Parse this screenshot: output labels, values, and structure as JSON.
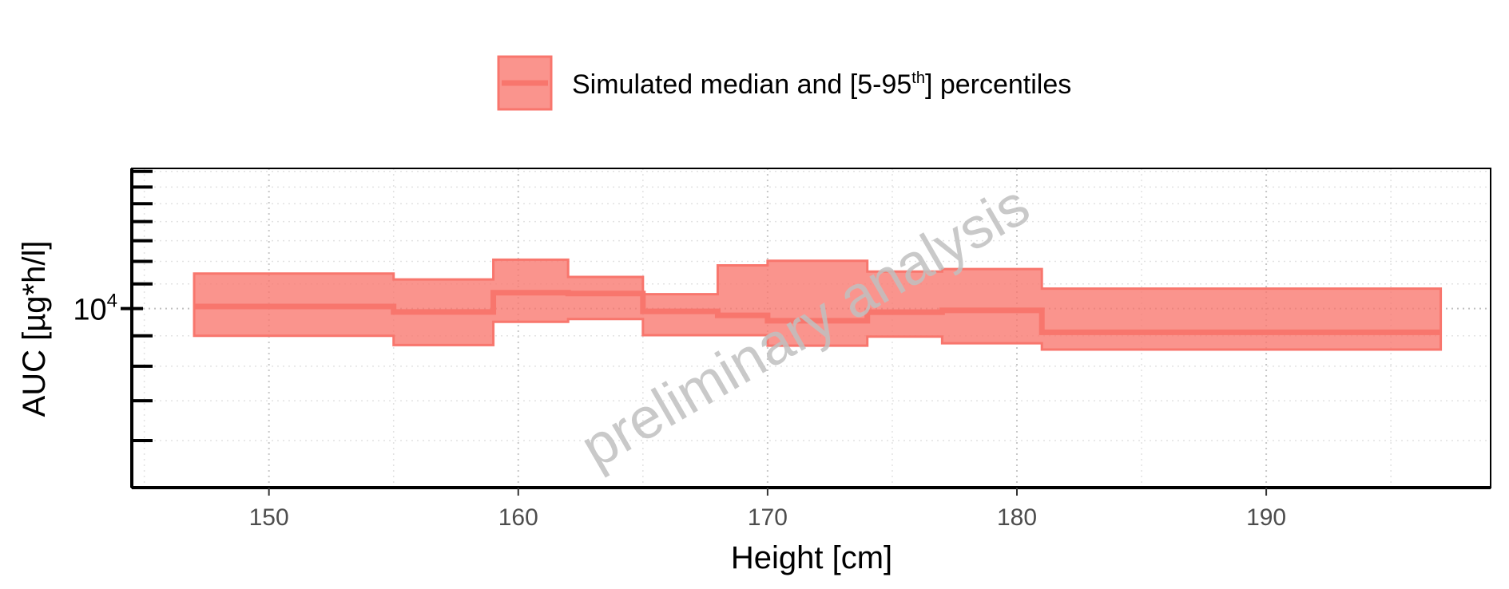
{
  "chart_data": {
    "type": "area",
    "x_scale": "linear",
    "y_scale": "log",
    "xlabel": "Height [cm]",
    "ylabel": "AUC [µg*h/l]",
    "xlim": [
      144.5,
      199
    ],
    "ylim": [
      5000,
      17200
    ],
    "x_ticks": [
      150,
      160,
      170,
      180,
      190
    ],
    "x_tick_labels": [
      "150",
      "160",
      "170",
      "180",
      "190"
    ],
    "y_ticks": [
      10000
    ],
    "y_tick_labels": [
      {
        "base": "10",
        "exp": "4"
      }
    ],
    "grid": true,
    "legend": {
      "position": "top",
      "label_before": "Simulated median and [5-95",
      "label_sup": "th",
      "label_after": "] percentiles"
    },
    "watermark": "preliminary analysis",
    "series": [
      {
        "color": "#F8766D",
        "fill_color": "#F8766D",
        "fill_opacity": 0.78,
        "steps": [
          {
            "x_start": 147,
            "x_end": 155,
            "median": 10080,
            "p5": 9000,
            "p95": 11450
          },
          {
            "x_start": 155,
            "x_end": 159,
            "median": 9870,
            "p5": 8680,
            "p95": 11190
          },
          {
            "x_start": 159,
            "x_end": 162,
            "median": 10630,
            "p5": 9500,
            "p95": 12080
          },
          {
            "x_start": 162,
            "x_end": 165,
            "median": 10600,
            "p5": 9600,
            "p95": 11300
          },
          {
            "x_start": 165,
            "x_end": 168,
            "median": 9890,
            "p5": 9020,
            "p95": 10570
          },
          {
            "x_start": 168,
            "x_end": 170,
            "median": 9740,
            "p5": 9020,
            "p95": 11820
          },
          {
            "x_start": 170,
            "x_end": 174,
            "median": 9540,
            "p5": 8660,
            "p95": 12030
          },
          {
            "x_start": 174,
            "x_end": 177,
            "median": 9860,
            "p5": 8970,
            "p95": 11540
          },
          {
            "x_start": 177,
            "x_end": 181,
            "median": 9930,
            "p5": 8740,
            "p95": 11650
          },
          {
            "x_start": 181,
            "x_end": 197,
            "median": 9120,
            "p5": 8530,
            "p95": 10800
          }
        ]
      }
    ]
  }
}
